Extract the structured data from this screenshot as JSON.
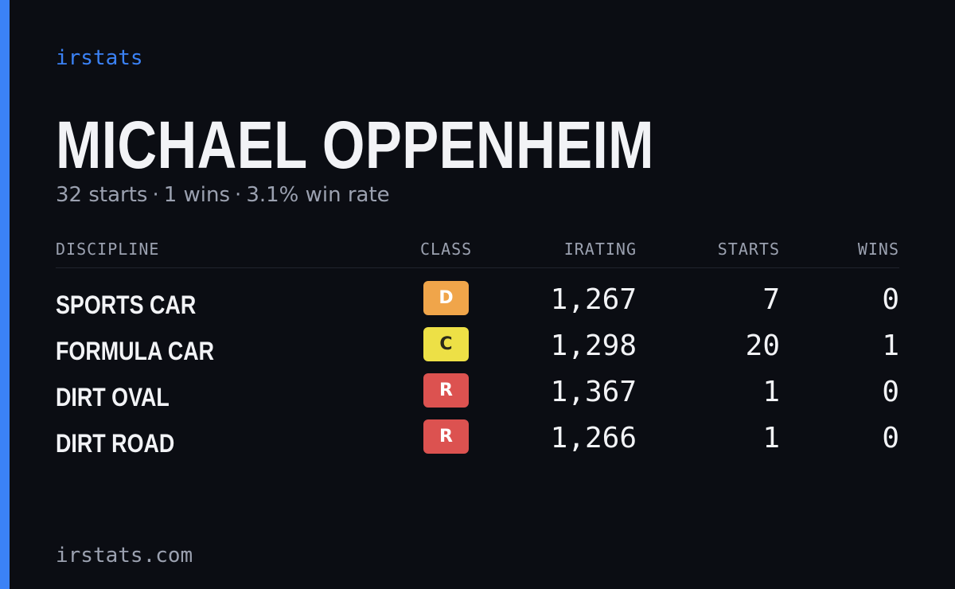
{
  "theme": {
    "background": "#0b0d13",
    "accent": "#3b82f6",
    "text": "#f2f3f6",
    "muted": "#9ba1b0"
  },
  "brand": "irstats",
  "player": {
    "name": "MICHAEL OPPENHEIM",
    "starts_text": "32 starts",
    "wins_text": "1 wins",
    "win_rate_text": "3.1% win rate",
    "separator": "·"
  },
  "table": {
    "headers": {
      "discipline": "DISCIPLINE",
      "class": "CLASS",
      "irating": "IRATING",
      "starts": "STARTS",
      "wins": "WINS"
    },
    "rows": [
      {
        "discipline": "SPORTS CAR",
        "class": "D",
        "class_bg": "#f0a54a",
        "class_fg": "#ffffff",
        "irating": "1,267",
        "starts": "7",
        "wins": "0"
      },
      {
        "discipline": "FORMULA CAR",
        "class": "C",
        "class_bg": "#ede046",
        "class_fg": "#2a2a1a",
        "irating": "1,298",
        "starts": "20",
        "wins": "1"
      },
      {
        "discipline": "DIRT OVAL",
        "class": "R",
        "class_bg": "#dc5250",
        "class_fg": "#ffffff",
        "irating": "1,367",
        "starts": "1",
        "wins": "0"
      },
      {
        "discipline": "DIRT ROAD",
        "class": "R",
        "class_bg": "#dc5250",
        "class_fg": "#ffffff",
        "irating": "1,266",
        "starts": "1",
        "wins": "0"
      }
    ]
  },
  "footer": "irstats.com"
}
